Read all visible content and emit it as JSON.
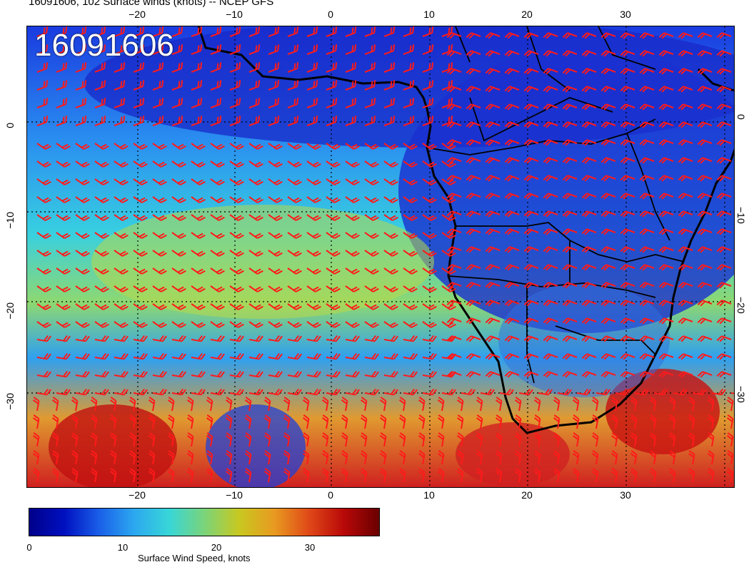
{
  "header": {
    "title": "16091606, 102 Surface winds (knots) -- NCEP GFS"
  },
  "map": {
    "date_label": "16091606",
    "lon_ticks_top": [
      "−20",
      "−10",
      "0",
      "10",
      "20",
      "30"
    ],
    "lon_ticks_bottom": [
      "−20",
      "−10",
      "0",
      "10",
      "20",
      "30"
    ],
    "lat_ticks_left": [
      "0",
      "−10",
      "−20",
      "−30"
    ],
    "lat_ticks_right": [
      "0",
      "−10",
      "−20",
      "−30"
    ],
    "barb_color": "#ff1a1a",
    "coast_color": "#000000"
  },
  "colorbar": {
    "ticks": [
      "0",
      "10",
      "20",
      "30"
    ],
    "label": "Surface Wind Speed, knots"
  }
}
